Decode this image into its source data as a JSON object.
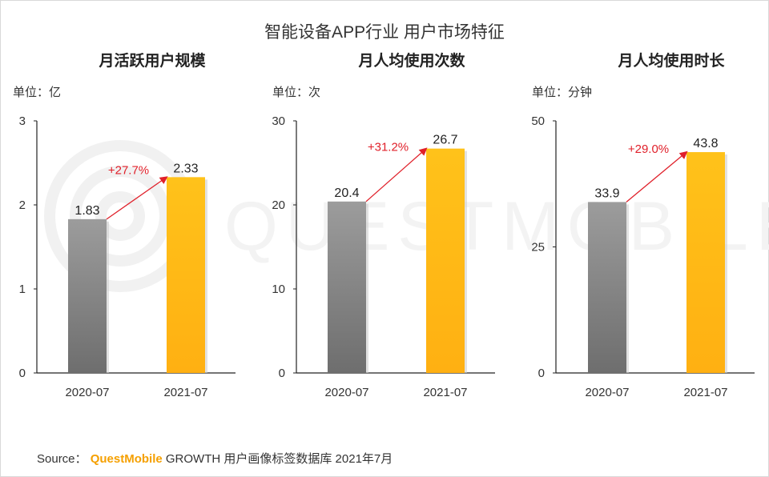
{
  "title": "智能设备APP行业 用户市场特征",
  "colors": {
    "bar_2020": "#8a8a8a",
    "bar_2021": "#ffba14",
    "arrow": "#e0202a",
    "growth_text": "#e0202a",
    "text": "#333333"
  },
  "chart_data": [
    {
      "type": "bar",
      "title": "月活跃用户规模",
      "unit": "单位：亿",
      "categories": [
        "2020-07",
        "2021-07"
      ],
      "values": [
        1.83,
        2.33
      ],
      "value_labels": [
        "1.83",
        "2.33"
      ],
      "yticks": [
        0,
        1,
        2,
        3
      ],
      "ylim": [
        0,
        3
      ],
      "growth": "+27.7%"
    },
    {
      "type": "bar",
      "title": "月人均使用次数",
      "unit": "单位：次",
      "categories": [
        "2020-07",
        "2021-07"
      ],
      "values": [
        20.4,
        26.7
      ],
      "value_labels": [
        "20.4",
        "26.7"
      ],
      "yticks": [
        0,
        10,
        20,
        30
      ],
      "ylim": [
        0,
        30
      ],
      "growth": "+31.2%"
    },
    {
      "type": "bar",
      "title": "月人均使用时长",
      "unit": "单位：分钟",
      "categories": [
        "2020-07",
        "2021-07"
      ],
      "values": [
        33.9,
        43.8
      ],
      "value_labels": [
        "33.9",
        "43.8"
      ],
      "yticks": [
        0,
        25,
        50
      ],
      "ylim": [
        0,
        50
      ],
      "growth": "+29.0%"
    }
  ],
  "source": {
    "prefix": "Source：",
    "brand": "QuestMobile",
    "rest": "GROWTH 用户画像标签数据库 2021年7月"
  },
  "watermark": "QUESTMOBILE"
}
